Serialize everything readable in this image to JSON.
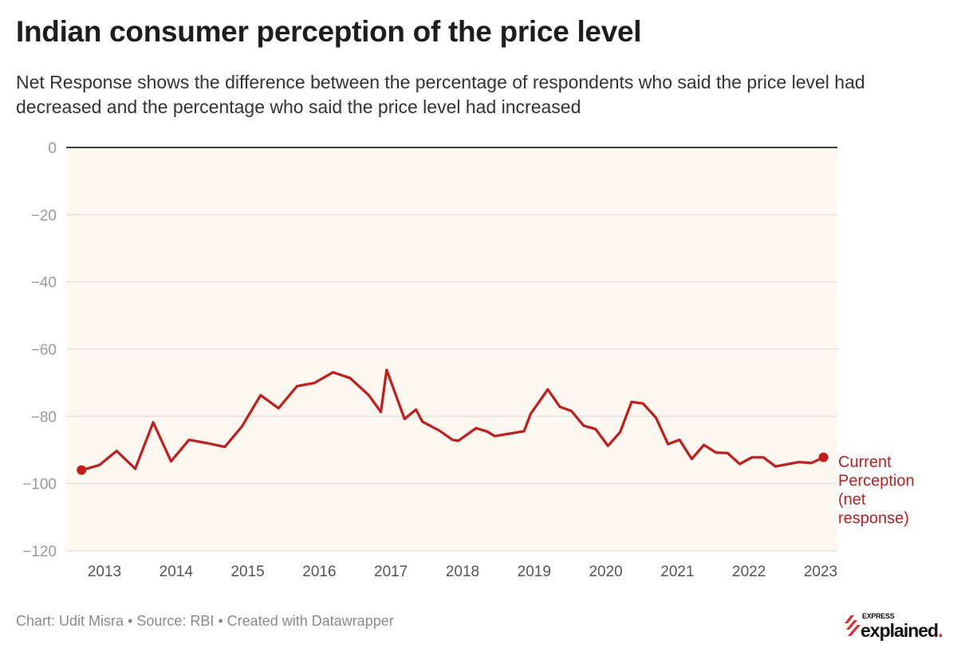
{
  "title": "Indian consumer perception of the price level",
  "subtitle": "Net Response shows the difference between the percentage of respondents who said the price level had decreased and the percentage who said the price level had increased",
  "footer": "Chart: Udit Misra • Source: RBI • Created with Datawrapper",
  "logo": {
    "top": "EXPRESS",
    "main": "explained",
    "dot": "."
  },
  "colors": {
    "line": "#c8191b",
    "plot_bg": "#fdf9f0",
    "grid": "#e2e2e2",
    "zero_line": "#000000",
    "logo_accent": "#e5262a"
  },
  "chart_data": {
    "type": "line",
    "title": "Indian consumer perception of the price level",
    "xlabel": "",
    "ylabel": "",
    "xlim": [
      2012.6,
      2023.2
    ],
    "ylim": [
      -120,
      0
    ],
    "grid": true,
    "yticks": [
      0,
      -20,
      -40,
      -60,
      -80,
      -100,
      -120
    ],
    "ytick_labels": [
      "0",
      "−20",
      "−40",
      "−60",
      "−80",
      "−100",
      "−120"
    ],
    "xticks": [
      2013,
      2014,
      2015,
      2016,
      2017,
      2018,
      2019,
      2020,
      2021,
      2022,
      2023
    ],
    "xtick_labels": [
      "2013",
      "2014",
      "2015",
      "2016",
      "2017",
      "2018",
      "2019",
      "2020",
      "2021",
      "2022",
      "2023"
    ],
    "series": [
      {
        "name": "Current Perception (net response)",
        "label_lines": [
          "Current",
          "Perception",
          "(net",
          "response)"
        ],
        "x": [
          2012.68,
          2012.93,
          2013.17,
          2013.43,
          2013.68,
          2013.93,
          2014.18,
          2014.44,
          2014.68,
          2014.92,
          2015.18,
          2015.43,
          2015.69,
          2015.93,
          2016.19,
          2016.43,
          2016.69,
          2016.86,
          2016.94,
          2017.19,
          2017.35,
          2017.44,
          2017.68,
          2017.86,
          2017.94,
          2018.19,
          2018.35,
          2018.45,
          2018.86,
          2018.95,
          2019.19,
          2019.36,
          2019.52,
          2019.69,
          2019.86,
          2020.03,
          2020.2,
          2020.36,
          2020.52,
          2020.7,
          2020.87,
          2021.03,
          2021.2,
          2021.37,
          2021.54,
          2021.7,
          2021.87,
          2022.04,
          2022.2,
          2022.37,
          2022.7,
          2022.87,
          2023.04
        ],
        "y": [
          -96.0,
          -94.5,
          -90.3,
          -95.6,
          -81.8,
          -93.4,
          -87.0,
          -88.0,
          -89.1,
          -83.0,
          -73.7,
          -77.6,
          -71.0,
          -70.1,
          -66.9,
          -68.6,
          -73.7,
          -78.7,
          -66.2,
          -80.8,
          -78.0,
          -81.6,
          -84.3,
          -87.0,
          -87.3,
          -83.5,
          -84.6,
          -85.9,
          -84.4,
          -79.3,
          -72.0,
          -77.2,
          -78.4,
          -82.8,
          -83.8,
          -88.8,
          -84.7,
          -75.7,
          -76.2,
          -80.4,
          -88.3,
          -87.0,
          -92.7,
          -88.5,
          -90.8,
          -90.9,
          -94.2,
          -92.2,
          -92.2,
          -94.9,
          -93.6,
          -93.9,
          -92.2
        ]
      }
    ]
  }
}
